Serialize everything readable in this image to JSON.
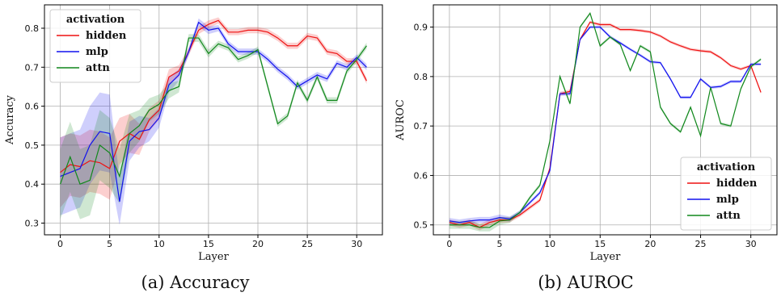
{
  "chart_data": [
    {
      "type": "line",
      "caption": "(a) Accuracy",
      "xlabel": "Layer",
      "ylabel": "Accuracy",
      "xlim": [
        -1.6,
        32.6
      ],
      "ylim": [
        0.27,
        0.86
      ],
      "xticks": [
        0,
        5,
        10,
        15,
        20,
        25,
        30
      ],
      "yticks": [
        0.3,
        0.4,
        0.5,
        0.6,
        0.7,
        0.8
      ],
      "grid": true,
      "legend": {
        "title": "activation",
        "placement": "top-left"
      },
      "x": [
        0,
        1,
        2,
        3,
        4,
        5,
        6,
        7,
        8,
        9,
        10,
        11,
        12,
        13,
        14,
        15,
        16,
        17,
        18,
        19,
        20,
        21,
        22,
        23,
        24,
        25,
        26,
        27,
        28,
        29,
        30,
        31
      ],
      "series": [
        {
          "name": "hidden",
          "color": "#ee1111",
          "values": [
            0.43,
            0.45,
            0.445,
            0.46,
            0.455,
            0.44,
            0.51,
            0.53,
            0.515,
            0.565,
            0.59,
            0.675,
            0.69,
            0.74,
            0.795,
            0.81,
            0.82,
            0.79,
            0.79,
            0.795,
            0.795,
            0.79,
            0.775,
            0.755,
            0.755,
            0.78,
            0.775,
            0.74,
            0.735,
            0.715,
            0.715,
            0.665
          ],
          "band": [
            0.09,
            0.08,
            0.08,
            0.08,
            0.08,
            0.08,
            0.06,
            0.05,
            0.04,
            0.03,
            0.025,
            0.02,
            0.015,
            0.01,
            0.01,
            0.01,
            0.008,
            0.008,
            0.008,
            0.008,
            0.008,
            0.008,
            0.008,
            0.008,
            0.008,
            0.008,
            0.008,
            0.008,
            0.008,
            0.008,
            0.008,
            0.008
          ]
        },
        {
          "name": "mlp",
          "color": "#1111ee",
          "values": [
            0.42,
            0.43,
            0.44,
            0.5,
            0.535,
            0.53,
            0.355,
            0.51,
            0.535,
            0.54,
            0.57,
            0.655,
            0.68,
            0.74,
            0.815,
            0.795,
            0.8,
            0.76,
            0.74,
            0.74,
            0.74,
            0.72,
            0.695,
            0.675,
            0.65,
            0.665,
            0.68,
            0.67,
            0.71,
            0.7,
            0.725,
            0.7
          ],
          "band": [
            0.1,
            0.1,
            0.1,
            0.1,
            0.1,
            0.1,
            0.06,
            0.05,
            0.04,
            0.03,
            0.025,
            0.02,
            0.015,
            0.01,
            0.01,
            0.01,
            0.008,
            0.008,
            0.008,
            0.008,
            0.008,
            0.008,
            0.008,
            0.008,
            0.008,
            0.008,
            0.008,
            0.008,
            0.008,
            0.008,
            0.008,
            0.008
          ]
        },
        {
          "name": "attn",
          "color": "#11881c",
          "values": [
            0.4,
            0.47,
            0.4,
            0.41,
            0.5,
            0.48,
            0.42,
            0.53,
            0.55,
            0.59,
            0.605,
            0.64,
            0.65,
            0.775,
            0.775,
            0.735,
            0.76,
            0.75,
            0.72,
            0.73,
            0.745,
            0.65,
            0.555,
            0.575,
            0.66,
            0.615,
            0.675,
            0.615,
            0.615,
            0.69,
            0.72,
            0.755
          ],
          "band": [
            0.09,
            0.09,
            0.09,
            0.09,
            0.09,
            0.09,
            0.07,
            0.05,
            0.04,
            0.03,
            0.025,
            0.02,
            0.015,
            0.01,
            0.01,
            0.01,
            0.008,
            0.008,
            0.008,
            0.008,
            0.008,
            0.008,
            0.008,
            0.008,
            0.008,
            0.008,
            0.008,
            0.008,
            0.008,
            0.008,
            0.008,
            0.008
          ]
        }
      ]
    },
    {
      "type": "line",
      "caption": "(b) AUROC",
      "xlabel": "Layer",
      "ylabel": "AUROC",
      "xlim": [
        -1.6,
        32.6
      ],
      "ylim": [
        0.48,
        0.945
      ],
      "xticks": [
        0,
        5,
        10,
        15,
        20,
        25,
        30
      ],
      "yticks": [
        0.5,
        0.6,
        0.7,
        0.8,
        0.9
      ],
      "grid": true,
      "legend": {
        "title": "activation",
        "placement": "bottom-right"
      },
      "x": [
        0,
        1,
        2,
        3,
        4,
        5,
        6,
        7,
        8,
        9,
        10,
        11,
        12,
        13,
        14,
        15,
        16,
        17,
        18,
        19,
        20,
        21,
        22,
        23,
        24,
        25,
        26,
        27,
        28,
        29,
        30,
        31
      ],
      "series": [
        {
          "name": "hidden",
          "color": "#ee1111",
          "values": [
            0.505,
            0.5,
            0.505,
            0.495,
            0.505,
            0.51,
            0.51,
            0.52,
            0.535,
            0.55,
            0.615,
            0.765,
            0.77,
            0.875,
            0.91,
            0.905,
            0.905,
            0.895,
            0.895,
            0.893,
            0.89,
            0.882,
            0.87,
            0.862,
            0.855,
            0.852,
            0.85,
            0.838,
            0.822,
            0.815,
            0.822,
            0.768
          ],
          "band": [
            0.006,
            0.006,
            0.006,
            0.006,
            0.006,
            0.006,
            0.005,
            0.004,
            0.004,
            0.004,
            0.004,
            0.004,
            0.004,
            0.003,
            0.003,
            0.003,
            0.003,
            0.003,
            0.003,
            0.003,
            0.003,
            0.003,
            0.003,
            0.003,
            0.003,
            0.003,
            0.003,
            0.003,
            0.003,
            0.003,
            0.003,
            0.003
          ]
        },
        {
          "name": "mlp",
          "color": "#1111ee",
          "values": [
            0.508,
            0.505,
            0.508,
            0.51,
            0.51,
            0.515,
            0.512,
            0.525,
            0.545,
            0.565,
            0.61,
            0.765,
            0.765,
            0.875,
            0.9,
            0.9,
            0.88,
            0.868,
            0.855,
            0.843,
            0.83,
            0.828,
            0.795,
            0.758,
            0.758,
            0.795,
            0.778,
            0.78,
            0.79,
            0.79,
            0.825,
            0.825
          ],
          "band": [
            0.006,
            0.006,
            0.006,
            0.006,
            0.006,
            0.006,
            0.005,
            0.004,
            0.004,
            0.004,
            0.004,
            0.004,
            0.004,
            0.003,
            0.003,
            0.003,
            0.003,
            0.003,
            0.003,
            0.003,
            0.003,
            0.003,
            0.003,
            0.003,
            0.003,
            0.003,
            0.003,
            0.003,
            0.003,
            0.003,
            0.003,
            0.003
          ]
        },
        {
          "name": "attn",
          "color": "#11881c",
          "values": [
            0.5,
            0.5,
            0.5,
            0.495,
            0.495,
            0.508,
            0.51,
            0.525,
            0.555,
            0.58,
            0.67,
            0.8,
            0.745,
            0.9,
            0.928,
            0.862,
            0.88,
            0.865,
            0.812,
            0.862,
            0.85,
            0.738,
            0.705,
            0.688,
            0.738,
            0.68,
            0.778,
            0.705,
            0.7,
            0.775,
            0.82,
            0.835
          ],
          "band": [
            0.008,
            0.008,
            0.008,
            0.008,
            0.008,
            0.008,
            0.006,
            0.004,
            0.004,
            0.004,
            0.004,
            0.004,
            0.004,
            0.003,
            0.003,
            0.003,
            0.003,
            0.003,
            0.003,
            0.003,
            0.003,
            0.003,
            0.003,
            0.003,
            0.003,
            0.003,
            0.003,
            0.003,
            0.003,
            0.003,
            0.003,
            0.003
          ]
        }
      ]
    }
  ]
}
